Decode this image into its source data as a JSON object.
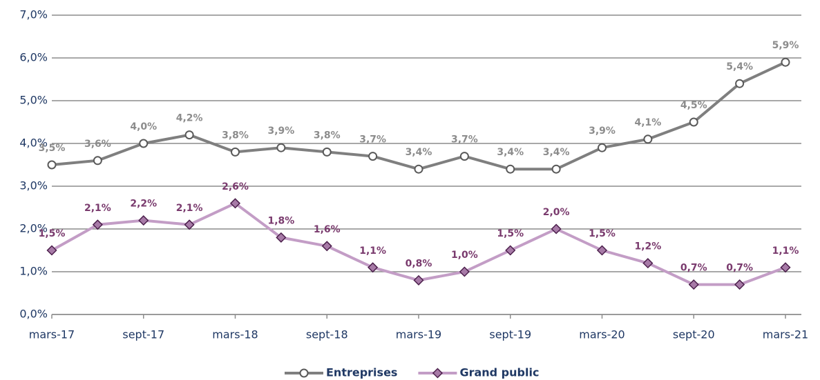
{
  "chart_data": {
    "type": "line",
    "categories": [
      "mars-17",
      null,
      "sept-17",
      null,
      "mars-18",
      null,
      "sept-18",
      null,
      "mars-19",
      null,
      "sept-19",
      null,
      "mars-20",
      null,
      "sept-20",
      null,
      "mars-21"
    ],
    "series": [
      {
        "name": "Entreprises",
        "color": "#7f7f7f",
        "marker": "circle",
        "label_color": "#8c8c8c",
        "values": [
          3.5,
          3.6,
          4.0,
          4.2,
          3.8,
          3.9,
          3.8,
          3.7,
          3.4,
          3.7,
          3.4,
          3.4,
          3.9,
          4.1,
          4.5,
          5.4,
          5.9
        ],
        "value_labels": [
          "3,5%",
          "3,6%",
          "4,0%",
          "4,2%",
          "3,8%",
          "3,9%",
          "3,8%",
          "3,7%",
          "3,4%",
          "3,7%",
          "3,4%",
          "3,4%",
          "3,9%",
          "4,1%",
          "4,5%",
          "5,4%",
          "5,9%"
        ]
      },
      {
        "name": "Grand public",
        "color": "#c39dc6",
        "marker": "diamond",
        "label_color": "#7a3b6e",
        "values": [
          1.5,
          2.1,
          2.2,
          2.1,
          2.6,
          1.8,
          1.6,
          1.1,
          0.8,
          1.0,
          1.5,
          2.0,
          1.5,
          1.2,
          0.7,
          0.7,
          1.1
        ],
        "value_labels": [
          "1,5%",
          "2,1%",
          "2,2%",
          "2,1%",
          "2,6%",
          "1,8%",
          "1,6%",
          "1,1%",
          "0,8%",
          "1,0%",
          "1,5%",
          "2,0%",
          "1,5%",
          "1,2%",
          "0,7%",
          "0,7%",
          "1,1%"
        ]
      }
    ],
    "ylim": [
      0,
      7
    ],
    "yticks": [
      {
        "value": 0,
        "label": "0,0%"
      },
      {
        "value": 1,
        "label": "1,0%"
      },
      {
        "value": 2,
        "label": "2,0%"
      },
      {
        "value": 3,
        "label": "3,0%"
      },
      {
        "value": 4,
        "label": "4,0%"
      },
      {
        "value": 5,
        "label": "5,0%"
      },
      {
        "value": 6,
        "label": "6,0%"
      },
      {
        "value": 7,
        "label": "7,0%"
      }
    ],
    "grid": true,
    "legend": "bottom"
  }
}
